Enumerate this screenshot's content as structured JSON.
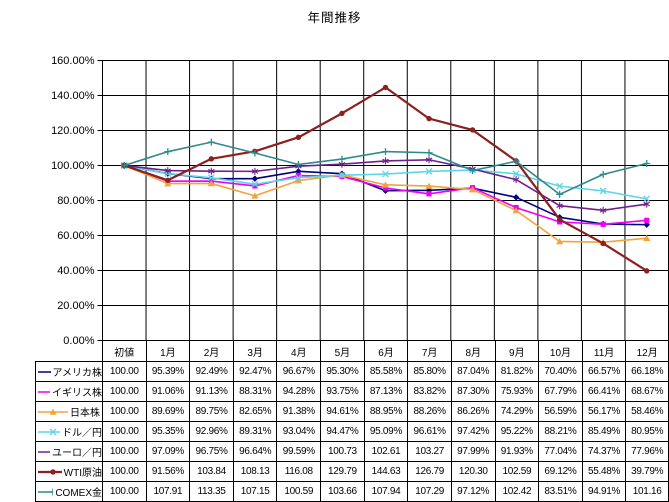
{
  "window": {
    "title": "年間推移"
  },
  "chart_data": {
    "type": "line",
    "title": "年間推移",
    "categories": [
      "初値",
      "1月",
      "2月",
      "3月",
      "4月",
      "5月",
      "6月",
      "7月",
      "8月",
      "9月",
      "10月",
      "11月",
      "12月"
    ],
    "ylim": [
      0,
      160
    ],
    "ytick_step": 20,
    "ytick_labels": [
      "0.00%",
      "20.00%",
      "40.00%",
      "60.00%",
      "80.00%",
      "100.00%",
      "120.00%",
      "140.00%",
      "160.00%"
    ],
    "grid": true,
    "legend_position": "data-table-left",
    "series": [
      {
        "name": "アメリカ株",
        "color": "#000080",
        "marker": "diamond",
        "line_width": 1.6,
        "values": [
          100.0,
          95.39,
          92.49,
          92.47,
          96.67,
          95.3,
          85.58,
          85.8,
          87.04,
          81.82,
          70.4,
          66.57,
          66.18
        ],
        "display": [
          "100.00",
          "95.39%",
          "92.49%",
          "92.47%",
          "96.67%",
          "95.30%",
          "85.58%",
          "85.80%",
          "87.04%",
          "81.82%",
          "70.40%",
          "66.57%",
          "66.18%"
        ]
      },
      {
        "name": "イギリス株",
        "color": "#F000F0",
        "marker": "square",
        "line_width": 1.6,
        "values": [
          100.0,
          91.06,
          91.13,
          88.31,
          94.28,
          93.75,
          87.13,
          83.82,
          87.3,
          75.93,
          67.79,
          66.41,
          68.67
        ],
        "display": [
          "100.00",
          "91.06%",
          "91.13%",
          "88.31%",
          "94.28%",
          "93.75%",
          "87.13%",
          "83.82%",
          "87.30%",
          "75.93%",
          "67.79%",
          "66.41%",
          "68.67%"
        ]
      },
      {
        "name": "日本株",
        "color": "#F2A33C",
        "marker": "triangle",
        "line_width": 1.6,
        "values": [
          100.0,
          89.69,
          89.75,
          82.65,
          91.38,
          94.61,
          88.95,
          88.26,
          86.26,
          74.29,
          56.59,
          56.17,
          58.46
        ],
        "display": [
          "100.00",
          "89.69%",
          "89.75%",
          "82.65%",
          "91.38%",
          "94.61%",
          "88.95%",
          "88.26%",
          "86.26%",
          "74.29%",
          "56.59%",
          "56.17%",
          "58.46%"
        ]
      },
      {
        "name": "ドル／円",
        "color": "#5CD6E8",
        "marker": "x",
        "line_width": 1.6,
        "values": [
          100.0,
          95.35,
          92.96,
          89.31,
          93.04,
          94.47,
          95.09,
          96.61,
          97.42,
          95.22,
          88.21,
          85.49,
          80.95
        ],
        "display": [
          "100.00",
          "95.35%",
          "92.96%",
          "89.31%",
          "93.04%",
          "94.47%",
          "95.09%",
          "96.61%",
          "97.42%",
          "95.22%",
          "88.21%",
          "85.49%",
          "80.95%"
        ]
      },
      {
        "name": "ユーロ／円",
        "color": "#70208C",
        "marker": "asterisk",
        "line_width": 1.6,
        "values": [
          100.0,
          97.09,
          96.75,
          96.64,
          99.59,
          100.73,
          102.61,
          103.27,
          97.99,
          91.93,
          77.04,
          74.37,
          77.96
        ],
        "display": [
          "100.00",
          "97.09%",
          "96.75%",
          "96.64%",
          "99.59%",
          "100.73",
          "102.61",
          "103.27",
          "97.99%",
          "91.93%",
          "77.04%",
          "74.37%",
          "77.96%"
        ]
      },
      {
        "name": "WTI原油",
        "color": "#8B2020",
        "marker": "circle",
        "line_width": 2.2,
        "values": [
          100.0,
          91.56,
          103.84,
          108.13,
          116.08,
          129.79,
          144.63,
          126.79,
          120.3,
          102.59,
          69.12,
          55.48,
          39.79
        ],
        "display": [
          "100.00",
          "91.56%",
          "103.84",
          "108.13",
          "116.08",
          "129.79",
          "144.63",
          "126.79",
          "120.30",
          "102.59",
          "69.12%",
          "55.48%",
          "39.79%"
        ]
      },
      {
        "name": "COMEX金",
        "color": "#2E8B8B",
        "marker": "plus",
        "line_width": 1.6,
        "values": [
          100.0,
          107.91,
          113.35,
          107.15,
          100.59,
          103.66,
          107.94,
          107.29,
          97.12,
          102.42,
          83.51,
          94.91,
          101.16
        ],
        "display": [
          "100.00",
          "107.91",
          "113.35",
          "107.15",
          "100.59",
          "103.66",
          "107.94",
          "107.29",
          "97.12%",
          "102.42",
          "83.51%",
          "94.91%",
          "101.16"
        ]
      }
    ]
  }
}
